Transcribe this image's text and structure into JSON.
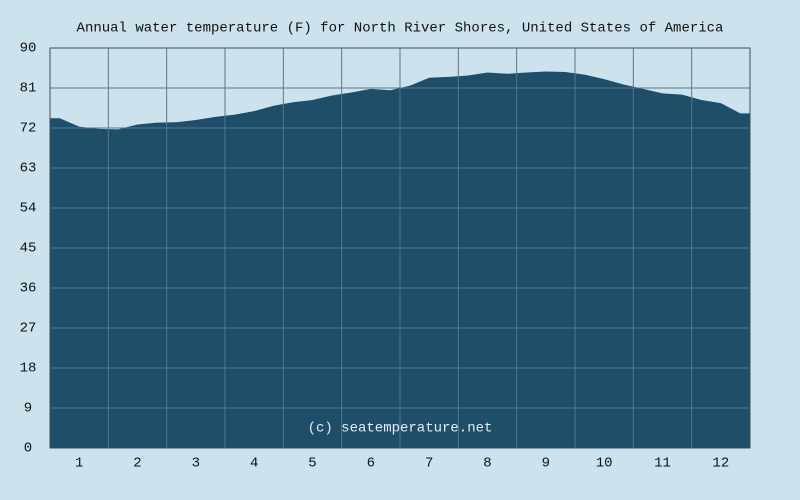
{
  "chart_data": {
    "type": "area",
    "title": "Annual water temperature (F) for North River Shores, United States of America",
    "annotation": "(c) seatemperature.net",
    "categories": [
      null,
      1,
      null,
      null,
      2,
      null,
      null,
      3,
      null,
      null,
      4,
      null,
      null,
      5,
      null,
      null,
      6,
      null,
      null,
      7,
      null,
      null,
      8,
      null,
      null,
      9,
      null,
      null,
      10,
      null,
      null,
      11,
      null,
      null,
      12,
      null
    ],
    "values": [
      74.2,
      72.3,
      71.8,
      71.7,
      72.8,
      73.2,
      73.3,
      73.8,
      74.5,
      75.0,
      75.8,
      77.0,
      77.8,
      78.3,
      79.3,
      80.0,
      80.8,
      80.5,
      81.5,
      83.3,
      83.5,
      83.8,
      84.5,
      84.2,
      84.5,
      84.7,
      84.6,
      84.0,
      83.0,
      81.8,
      80.8,
      79.8,
      79.5,
      78.3,
      77.6,
      75.3
    ],
    "color": "#1f4e6a",
    "ylim": [
      0,
      90
    ],
    "yticks": [
      0,
      9,
      18,
      27,
      36,
      45,
      54,
      63,
      72,
      81,
      90
    ],
    "grid": true
  }
}
